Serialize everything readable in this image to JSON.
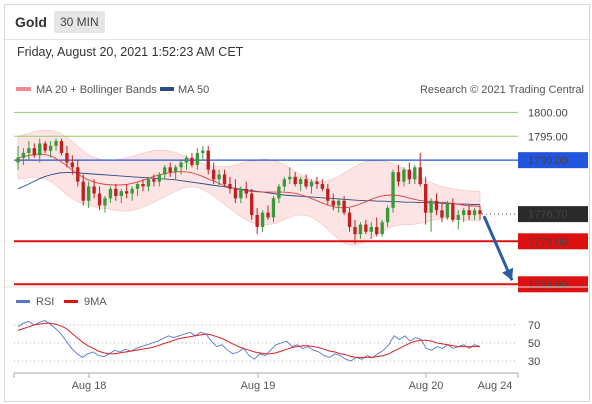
{
  "header": {
    "symbol": "Gold",
    "timeframe": "30 MIN",
    "datetime": "Friday, August 20, 2021 1:52:23 AM CET"
  },
  "legend": {
    "bollinger": "MA 20 + Bollinger Bands",
    "ma50": "MA 50",
    "rsi": "RSI",
    "ma9": "9MA"
  },
  "copyright": "Research © 2021 Trading Central",
  "colors": {
    "bull": "#3a9a3a",
    "bear": "#c02020",
    "ma20": "#e04040",
    "ma50": "#2a4b8d",
    "band": "#fbd9d9",
    "green_level": "#8fcf6f",
    "blue_level": "#2255dd",
    "red_level": "#dd1111",
    "rsi_line": "#5577cc",
    "arrow": "#2a5ca8"
  },
  "chart_data": [
    {
      "type": "candlestick",
      "x_labels": [
        "Aug 18",
        "Aug 19",
        "Aug 20",
        "Aug 24"
      ],
      "ylim": [
        1762.8,
        1802.6
      ],
      "levels": [
        {
          "value": 1800.0,
          "label": "1800.00",
          "style": "resistance-green"
        },
        {
          "value": 1795.0,
          "label": "1795.00",
          "style": "resistance-green"
        },
        {
          "value": 1790.0,
          "label": "1790.00",
          "style": "pivot-blue"
        },
        {
          "value": 1778.7,
          "label": "1778.70",
          "style": "last-price"
        },
        {
          "value": 1773.0,
          "label": "1773.00",
          "style": "support-red"
        },
        {
          "value": 1764.0,
          "label": "1764.00",
          "style": "support-red"
        }
      ],
      "last_price": 1778.7,
      "forecast_arrow": {
        "from": 1778.7,
        "to": 1764.0
      },
      "ohlc": [
        [
          1789.5,
          1793.0,
          1788.0,
          1790.5
        ],
        [
          1790.5,
          1792.5,
          1789.0,
          1791.5
        ],
        [
          1791.5,
          1794.0,
          1790.0,
          1792.5
        ],
        [
          1792.5,
          1793.5,
          1790.5,
          1791.0
        ],
        [
          1791.0,
          1794.5,
          1789.5,
          1793.5
        ],
        [
          1793.5,
          1794.0,
          1791.5,
          1792.0
        ],
        [
          1792.0,
          1794.0,
          1790.5,
          1793.0
        ],
        [
          1793.0,
          1794.5,
          1792.0,
          1794.0
        ],
        [
          1794.0,
          1794.5,
          1791.0,
          1791.5
        ],
        [
          1791.5,
          1793.0,
          1788.5,
          1789.5
        ],
        [
          1789.5,
          1791.0,
          1787.0,
          1788.5
        ],
        [
          1788.5,
          1790.0,
          1784.5,
          1785.5
        ],
        [
          1785.5,
          1787.0,
          1780.5,
          1781.5
        ],
        [
          1781.5,
          1785.5,
          1780.0,
          1784.5
        ],
        [
          1784.5,
          1786.0,
          1782.0,
          1783.0
        ],
        [
          1783.0,
          1784.5,
          1779.5,
          1780.5
        ],
        [
          1780.5,
          1782.5,
          1779.0,
          1782.0
        ],
        [
          1782.0,
          1784.5,
          1781.0,
          1784.0
        ],
        [
          1784.0,
          1785.0,
          1781.5,
          1782.5
        ],
        [
          1782.5,
          1784.0,
          1781.0,
          1783.5
        ],
        [
          1783.5,
          1785.0,
          1782.0,
          1783.0
        ],
        [
          1783.0,
          1784.5,
          1781.5,
          1784.0
        ],
        [
          1784.0,
          1785.5,
          1782.5,
          1785.0
        ],
        [
          1785.0,
          1786.0,
          1783.5,
          1784.5
        ],
        [
          1784.5,
          1786.5,
          1783.5,
          1786.0
        ],
        [
          1786.0,
          1787.0,
          1784.5,
          1785.5
        ],
        [
          1785.5,
          1787.5,
          1784.5,
          1787.0
        ],
        [
          1787.0,
          1789.0,
          1786.0,
          1788.5
        ],
        [
          1788.5,
          1789.5,
          1786.5,
          1787.5
        ],
        [
          1787.5,
          1789.0,
          1786.0,
          1788.5
        ],
        [
          1788.5,
          1790.0,
          1787.0,
          1789.5
        ],
        [
          1789.5,
          1791.0,
          1788.0,
          1790.5
        ],
        [
          1790.5,
          1791.5,
          1788.5,
          1789.0
        ],
        [
          1789.0,
          1792.5,
          1788.0,
          1791.5
        ],
        [
          1791.5,
          1793.0,
          1790.0,
          1792.0
        ],
        [
          1792.0,
          1793.0,
          1787.0,
          1788.0
        ],
        [
          1788.0,
          1789.5,
          1785.0,
          1786.0
        ],
        [
          1786.0,
          1788.0,
          1784.5,
          1787.0
        ],
        [
          1787.0,
          1788.0,
          1784.5,
          1785.0
        ],
        [
          1785.0,
          1786.5,
          1783.0,
          1784.0
        ],
        [
          1784.0,
          1786.0,
          1781.0,
          1782.0
        ],
        [
          1782.0,
          1784.5,
          1781.0,
          1784.0
        ],
        [
          1784.0,
          1785.5,
          1782.0,
          1783.0
        ],
        [
          1783.0,
          1784.0,
          1777.5,
          1778.5
        ],
        [
          1778.5,
          1780.0,
          1774.5,
          1776.0
        ],
        [
          1776.0,
          1779.5,
          1775.0,
          1779.0
        ],
        [
          1779.0,
          1780.5,
          1777.5,
          1778.0
        ],
        [
          1778.0,
          1782.5,
          1777.0,
          1782.0
        ],
        [
          1782.0,
          1785.0,
          1781.0,
          1784.5
        ],
        [
          1784.5,
          1786.5,
          1783.5,
          1786.0
        ],
        [
          1786.0,
          1788.5,
          1785.0,
          1786.5
        ],
        [
          1786.5,
          1787.5,
          1784.5,
          1785.0
        ],
        [
          1785.0,
          1786.5,
          1783.5,
          1786.0
        ],
        [
          1786.0,
          1787.0,
          1784.0,
          1784.5
        ],
        [
          1784.5,
          1786.0,
          1783.0,
          1785.5
        ],
        [
          1785.5,
          1786.5,
          1784.0,
          1785.0
        ],
        [
          1785.0,
          1786.0,
          1783.5,
          1784.0
        ],
        [
          1784.0,
          1785.0,
          1780.5,
          1781.5
        ],
        [
          1781.5,
          1783.0,
          1779.5,
          1780.5
        ],
        [
          1780.5,
          1782.0,
          1779.0,
          1781.5
        ],
        [
          1781.5,
          1782.5,
          1778.5,
          1779.0
        ],
        [
          1779.0,
          1780.0,
          1775.0,
          1776.0
        ],
        [
          1776.0,
          1777.5,
          1772.5,
          1774.5
        ],
        [
          1774.5,
          1777.0,
          1773.5,
          1776.5
        ],
        [
          1776.5,
          1777.5,
          1774.5,
          1775.0
        ],
        [
          1775.0,
          1777.0,
          1773.5,
          1776.0
        ],
        [
          1776.0,
          1778.0,
          1774.0,
          1774.5
        ],
        [
          1774.5,
          1777.5,
          1774.0,
          1777.0
        ],
        [
          1777.0,
          1780.5,
          1776.0,
          1780.0
        ],
        [
          1780.0,
          1788.0,
          1779.0,
          1787.5
        ],
        [
          1787.5,
          1789.0,
          1784.5,
          1785.5
        ],
        [
          1785.5,
          1788.5,
          1784.5,
          1788.0
        ],
        [
          1788.0,
          1789.5,
          1785.0,
          1786.0
        ],
        [
          1786.0,
          1789.0,
          1785.0,
          1788.5
        ],
        [
          1788.5,
          1791.5,
          1784.5,
          1785.0
        ],
        [
          1785.0,
          1786.5,
          1776.5,
          1779.0
        ],
        [
          1779.0,
          1782.0,
          1775.0,
          1781.5
        ],
        [
          1781.5,
          1783.0,
          1778.5,
          1779.5
        ],
        [
          1779.5,
          1781.0,
          1777.0,
          1778.0
        ],
        [
          1778.0,
          1781.5,
          1777.5,
          1781.0
        ],
        [
          1781.0,
          1782.0,
          1777.0,
          1777.5
        ],
        [
          1777.5,
          1779.5,
          1775.5,
          1778.5
        ],
        [
          1778.5,
          1780.0,
          1777.0,
          1779.5
        ],
        [
          1779.5,
          1780.5,
          1777.5,
          1778.5
        ],
        [
          1778.5,
          1780.0,
          1777.5,
          1779.5
        ],
        [
          1779.5,
          1780.5,
          1777.5,
          1778.7
        ]
      ],
      "ma20": [
        1790.5,
        1790.8,
        1791.1,
        1791.3,
        1791.2,
        1790.8,
        1790.0,
        1789.0,
        1787.9,
        1786.9,
        1786.1,
        1785.5,
        1785.1,
        1784.9,
        1784.8,
        1784.8,
        1784.9,
        1785.2,
        1785.6,
        1786.1,
        1786.6,
        1787.0,
        1787.3,
        1787.5,
        1787.6,
        1787.5,
        1787.2,
        1786.7,
        1786.1,
        1785.5,
        1784.9,
        1784.4,
        1784.0,
        1783.7,
        1783.5,
        1783.4,
        1783.3,
        1783.3,
        1783.3,
        1783.3,
        1783.2,
        1783.0,
        1782.6,
        1782.1,
        1781.5,
        1780.9,
        1780.4,
        1780.1,
        1780.0,
        1780.2,
        1780.6,
        1781.2,
        1781.8,
        1782.3,
        1782.6,
        1782.7,
        1782.6,
        1782.3,
        1781.9,
        1781.6,
        1781.4,
        1781.3,
        1781.2,
        1781.1,
        1780.9,
        1780.7,
        1780.5,
        1780.4,
        1780.3
      ],
      "band_upper": [
        1795.0,
        1795.4,
        1795.8,
        1796.2,
        1796.3,
        1796.2,
        1795.8,
        1795.0,
        1793.9,
        1792.6,
        1791.5,
        1790.7,
        1790.2,
        1790.0,
        1790.0,
        1790.2,
        1790.5,
        1790.9,
        1791.3,
        1791.7,
        1792.0,
        1792.1,
        1792.0,
        1791.7,
        1791.2,
        1790.6,
        1790.0,
        1789.4,
        1789.0,
        1788.7,
        1788.6,
        1788.7,
        1789.0,
        1789.4,
        1789.8,
        1790.1,
        1790.2,
        1790.1,
        1789.8,
        1789.2,
        1788.4,
        1787.5,
        1786.7,
        1786.0,
        1785.6,
        1785.5,
        1785.8,
        1786.5,
        1787.3,
        1788.2,
        1789.0,
        1789.6,
        1789.9,
        1790.0,
        1789.8,
        1789.4,
        1788.8,
        1788.1,
        1787.3,
        1786.5,
        1785.8,
        1785.2,
        1784.7,
        1784.3,
        1784.0,
        1783.8,
        1783.6,
        1783.5,
        1783.4
      ],
      "band_lower": [
        1786.0,
        1786.2,
        1786.4,
        1786.4,
        1786.1,
        1785.4,
        1784.2,
        1783.0,
        1781.9,
        1781.2,
        1780.7,
        1780.3,
        1780.0,
        1779.8,
        1779.6,
        1779.4,
        1779.3,
        1779.5,
        1779.9,
        1780.5,
        1781.2,
        1781.9,
        1782.6,
        1783.3,
        1784.0,
        1784.4,
        1784.4,
        1784.0,
        1783.2,
        1782.3,
        1781.2,
        1780.1,
        1779.0,
        1778.0,
        1777.2,
        1776.7,
        1776.4,
        1776.5,
        1776.8,
        1777.4,
        1778.0,
        1778.5,
        1778.5,
        1778.2,
        1777.4,
        1776.3,
        1775.0,
        1773.7,
        1772.7,
        1772.2,
        1772.2,
        1772.8,
        1773.7,
        1774.6,
        1775.4,
        1776.0,
        1776.4,
        1776.5,
        1776.5,
        1776.7,
        1777.0,
        1777.4,
        1777.7,
        1777.9,
        1777.8,
        1777.6,
        1777.4,
        1777.3,
        1777.2
      ],
      "ma50": [
        1784.0,
        1784.6,
        1785.3,
        1786.0,
        1786.6,
        1787.0,
        1787.3,
        1787.4,
        1787.4,
        1787.3,
        1787.2,
        1787.1,
        1787.0,
        1786.9,
        1786.8,
        1786.7,
        1786.6,
        1786.5,
        1786.4,
        1786.3,
        1786.2,
        1786.1,
        1786.0,
        1785.9,
        1785.7,
        1785.5,
        1785.3,
        1785.1,
        1784.9,
        1784.7,
        1784.5,
        1784.3,
        1784.1,
        1783.9,
        1783.7,
        1783.5,
        1783.3,
        1783.1,
        1782.9,
        1782.7,
        1782.6,
        1782.5,
        1782.4,
        1782.3,
        1782.2,
        1782.1,
        1782.0,
        1781.9,
        1781.8,
        1781.7,
        1781.6,
        1781.5,
        1781.5,
        1781.4,
        1781.4,
        1781.3,
        1781.3,
        1781.2,
        1781.2,
        1781.1,
        1781.1,
        1781.0,
        1781.0,
        1780.9,
        1780.9,
        1780.8,
        1780.8,
        1780.7,
        1780.7
      ]
    },
    {
      "type": "line",
      "title": "RSI",
      "ylim": [
        20,
        80
      ],
      "y_ticks": [
        70,
        50,
        30
      ],
      "series": [
        {
          "name": "RSI",
          "values": [
            68,
            72,
            74,
            70,
            73,
            75,
            71,
            66,
            60,
            52,
            44,
            38,
            34,
            38,
            40,
            36,
            35,
            38,
            42,
            40,
            43,
            41,
            44,
            46,
            48,
            50,
            52,
            55,
            58,
            56,
            58,
            60,
            62,
            58,
            62,
            60,
            52,
            46,
            48,
            42,
            38,
            40,
            44,
            36,
            32,
            38,
            36,
            42,
            48,
            50,
            52,
            46,
            48,
            44,
            46,
            42,
            40,
            36,
            34,
            38,
            36,
            32,
            30,
            34,
            32,
            36,
            34,
            38,
            42,
            48,
            58,
            54,
            58,
            52,
            56,
            54,
            44,
            42,
            46,
            44,
            48,
            44,
            46,
            48,
            44,
            48,
            46
          ]
        },
        {
          "name": "9MA",
          "values": [
            64,
            66,
            68,
            70,
            71,
            72,
            72,
            71,
            69,
            66,
            61,
            56,
            51,
            47,
            44,
            41,
            39,
            38,
            38,
            39,
            40,
            41,
            42,
            43,
            44,
            45,
            47,
            49,
            51,
            53,
            55,
            56,
            57,
            58,
            59,
            60,
            59,
            57,
            55,
            52,
            49,
            46,
            44,
            42,
            40,
            39,
            38,
            38,
            39,
            41,
            43,
            45,
            46,
            47,
            47,
            46,
            45,
            43,
            41,
            40,
            38,
            37,
            35,
            34,
            34,
            34,
            34,
            35,
            36,
            38,
            41,
            44,
            47,
            50,
            52,
            53,
            53,
            52,
            50,
            49,
            48,
            47,
            46,
            46,
            46,
            46,
            46
          ]
        }
      ]
    }
  ]
}
